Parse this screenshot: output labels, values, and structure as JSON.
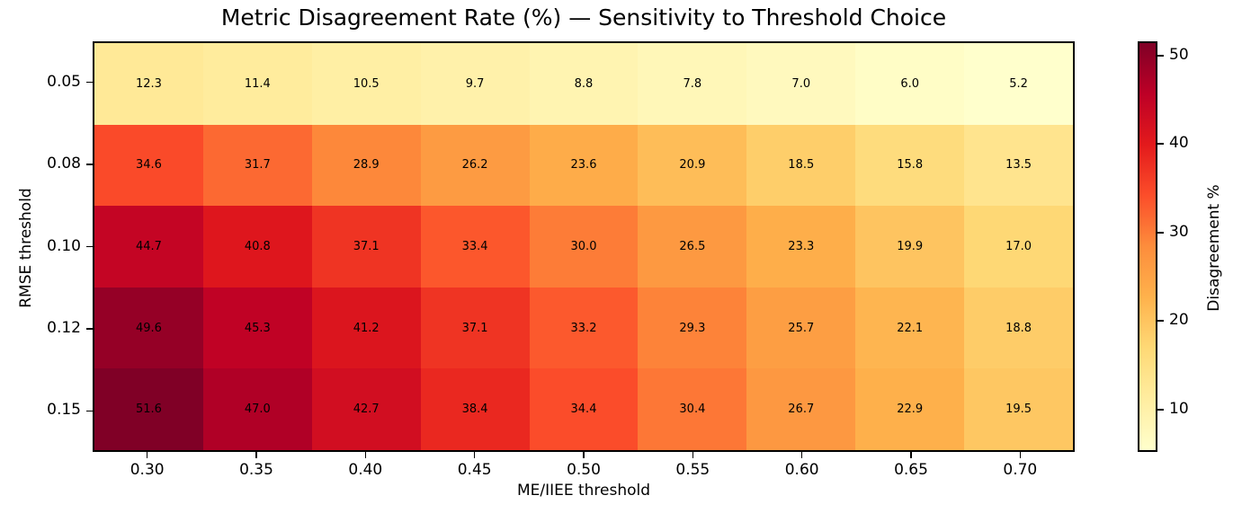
{
  "chart_data": {
    "type": "heatmap",
    "title": "Metric Disagreement Rate (%) — Sensitivity to Threshold Choice",
    "xlabel": "ME/IIEE threshold",
    "ylabel": "RMSE threshold",
    "x_tick_labels": [
      "0.30",
      "0.35",
      "0.40",
      "0.45",
      "0.50",
      "0.55",
      "0.60",
      "0.65",
      "0.70"
    ],
    "y_tick_labels": [
      "0.05",
      "0.08",
      "0.10",
      "0.12",
      "0.15"
    ],
    "values": [
      [
        12.3,
        11.4,
        10.5,
        9.7,
        8.8,
        7.8,
        7.0,
        6.0,
        5.2
      ],
      [
        34.6,
        31.7,
        28.9,
        26.2,
        23.6,
        20.9,
        18.5,
        15.8,
        13.5
      ],
      [
        44.7,
        40.8,
        37.1,
        33.4,
        30.0,
        26.5,
        23.3,
        19.9,
        17.0
      ],
      [
        49.6,
        45.3,
        41.2,
        37.1,
        33.2,
        29.3,
        25.7,
        22.1,
        18.8
      ],
      [
        51.6,
        47.0,
        42.7,
        38.4,
        34.4,
        30.4,
        26.7,
        22.9,
        19.5
      ]
    ],
    "annotation_decimals": 1,
    "colorbar": {
      "label": "Disagreement %",
      "ticks": [
        10,
        20,
        30,
        40,
        50
      ],
      "vmin": 5.2,
      "vmax": 51.6
    },
    "colormap": {
      "name": "YlOrRd",
      "anchors": [
        "#ffffcc",
        "#ffeda0",
        "#fed976",
        "#feb24c",
        "#fd8d3c",
        "#fc4e2a",
        "#e31a1c",
        "#bd0026",
        "#800026"
      ]
    },
    "grid": false,
    "legend_position": "none",
    "text_color": "#000000"
  }
}
